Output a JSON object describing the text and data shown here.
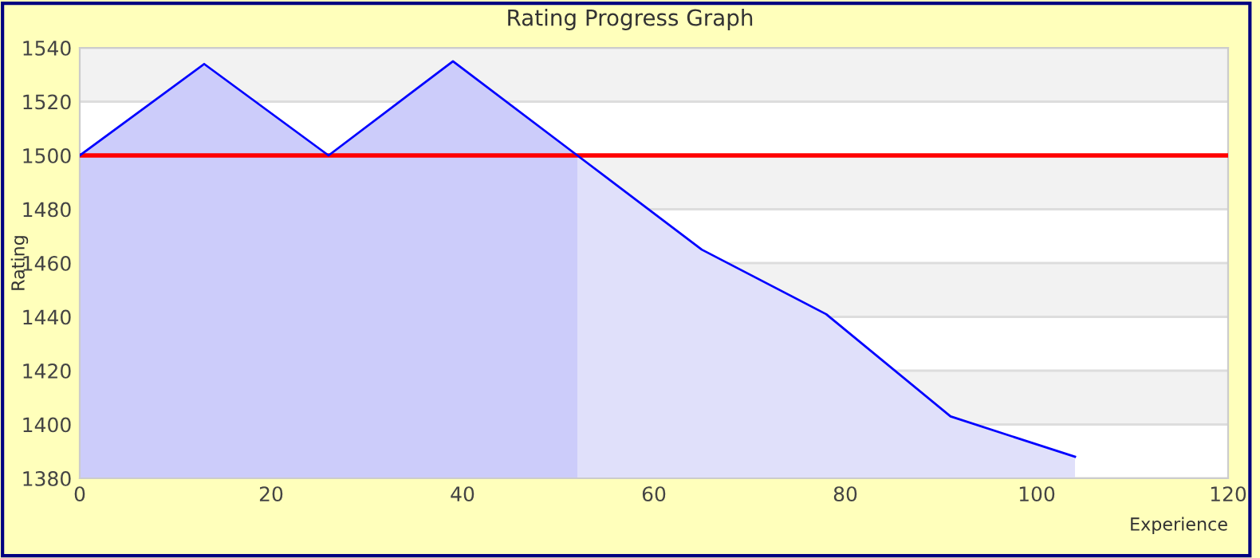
{
  "chart_data": {
    "type": "area",
    "title": "Rating Progress Graph",
    "xlabel": "Experience",
    "ylabel": "Rating",
    "series": [
      {
        "color": "#ccccfa",
        "x": [
          0,
          13,
          26,
          39,
          52
        ],
        "values": [
          1500,
          1534,
          1500,
          1535,
          1500
        ]
      },
      {
        "color": "#e0e0fa",
        "x": [
          52,
          65,
          78,
          91,
          104
        ],
        "values": [
          1500,
          1465,
          1441,
          1403,
          1388
        ]
      },
      {
        "type": "line",
        "color": "#0000ff",
        "x": [
          0,
          13,
          26,
          39,
          52,
          65,
          78,
          91,
          104
        ],
        "values": [
          1500,
          1534,
          1500,
          1535,
          1500,
          1465,
          1441,
          1403,
          1388
        ]
      }
    ],
    "xlim": [
      0,
      120
    ],
    "xticks": [
      0,
      20,
      40,
      60,
      80,
      100,
      120
    ],
    "ylim": [
      1380,
      1540
    ],
    "yticks": [
      1380,
      1400,
      1420,
      1440,
      1460,
      1480,
      1500,
      1520,
      1540
    ],
    "grid": "y",
    "marker": "none",
    "line_style": "solid",
    "ref_lines": [
      {
        "axis": "y",
        "value": 1500,
        "color": "#ff0000"
      }
    ],
    "bands": [
      {
        "axis": "y",
        "from": 1520,
        "to": 1540,
        "color": "#f2f2f2"
      },
      {
        "axis": "y",
        "from": 1480,
        "to": 1500,
        "color": "#f2f2f2"
      },
      {
        "axis": "y",
        "from": 1440,
        "to": 1460,
        "color": "#f2f2f2"
      },
      {
        "axis": "y",
        "from": 1400,
        "to": 1420,
        "color": "#f2f2f2"
      }
    ]
  }
}
